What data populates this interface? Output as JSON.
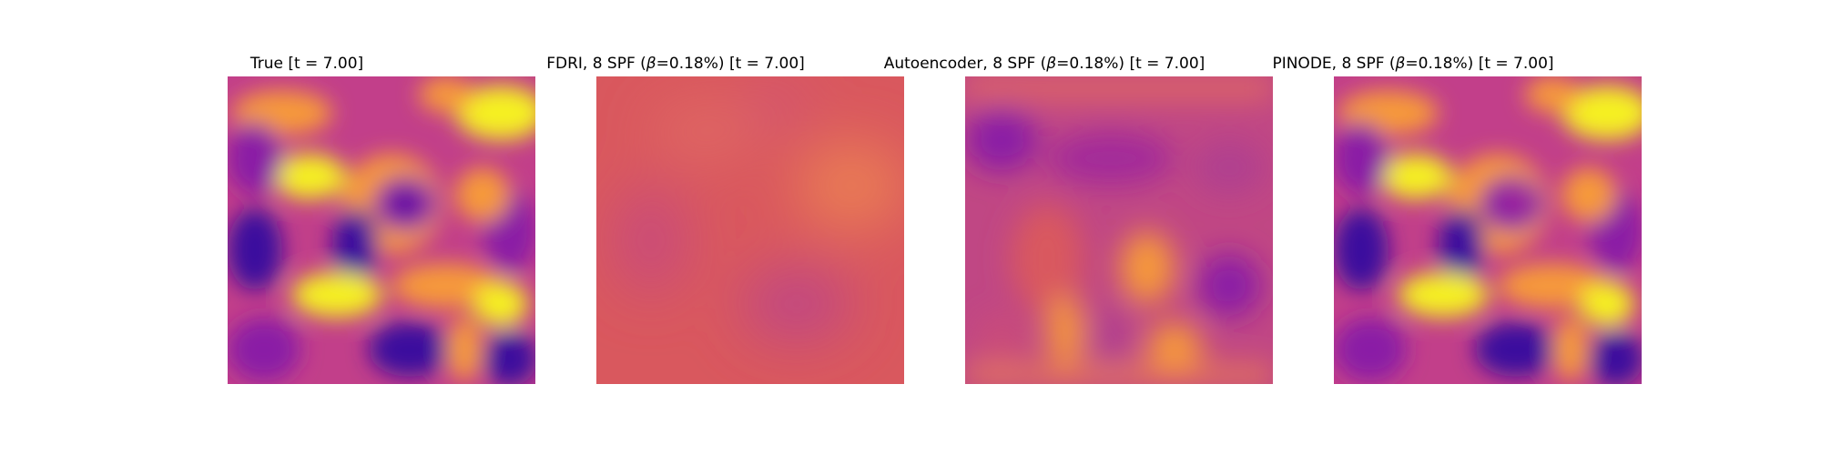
{
  "figure": {
    "panels": [
      {
        "title_pre": "True [t = 7.00]",
        "beta_symbol": "",
        "title_post": "",
        "field_style": "true"
      },
      {
        "title_pre": "FDRI, 8 SPF (",
        "beta_symbol": "β",
        "title_post": "=0.18%) [t = 7.00]",
        "field_style": "fdri"
      },
      {
        "title_pre": "Autoencoder, 8 SPF (",
        "beta_symbol": "β",
        "title_post": "=0.18%) [t = 7.00]",
        "field_style": "autoencoder"
      },
      {
        "title_pre": "PINODE, 8 SPF (",
        "beta_symbol": "β",
        "title_post": "=0.18%) [t = 7.00]",
        "field_style": "pinode"
      }
    ],
    "colormap": "plasma",
    "colors": {
      "dark_purple": "#3a0a9e",
      "purple": "#8a1fa6",
      "magenta": "#c23f8a",
      "salmon": "#e06864",
      "orange": "#f6993a",
      "yellow": "#f5f024"
    }
  }
}
